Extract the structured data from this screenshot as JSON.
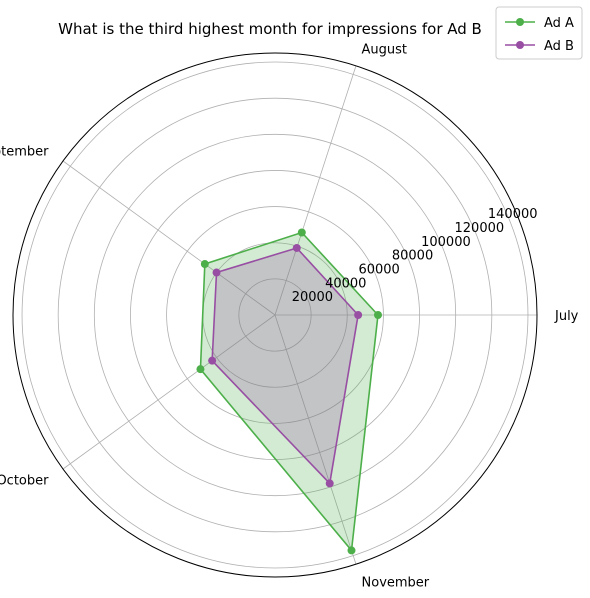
{
  "chart_data": {
    "type": "radar",
    "title": "What is the third highest month for impressions for Ad B",
    "categories": [
      "July",
      "August",
      "September",
      "October",
      "November"
    ],
    "radial_ticks": [
      "20000",
      "40000",
      "60000",
      "80000",
      "100000",
      "120000",
      "140000"
    ],
    "rlim": [
      0,
      145000
    ],
    "grid": true,
    "legend_position": "top-right",
    "series": [
      {
        "name": "Ad A",
        "color": "#4daf4a",
        "marker": "circle",
        "values": [
          57000,
          48000,
          48000,
          51000,
          137000
        ]
      },
      {
        "name": "Ad B",
        "color": "#984ea3",
        "marker": "circle",
        "values": [
          46000,
          39000,
          40000,
          43000,
          98000
        ]
      }
    ],
    "fill_alpha": 0.25
  }
}
